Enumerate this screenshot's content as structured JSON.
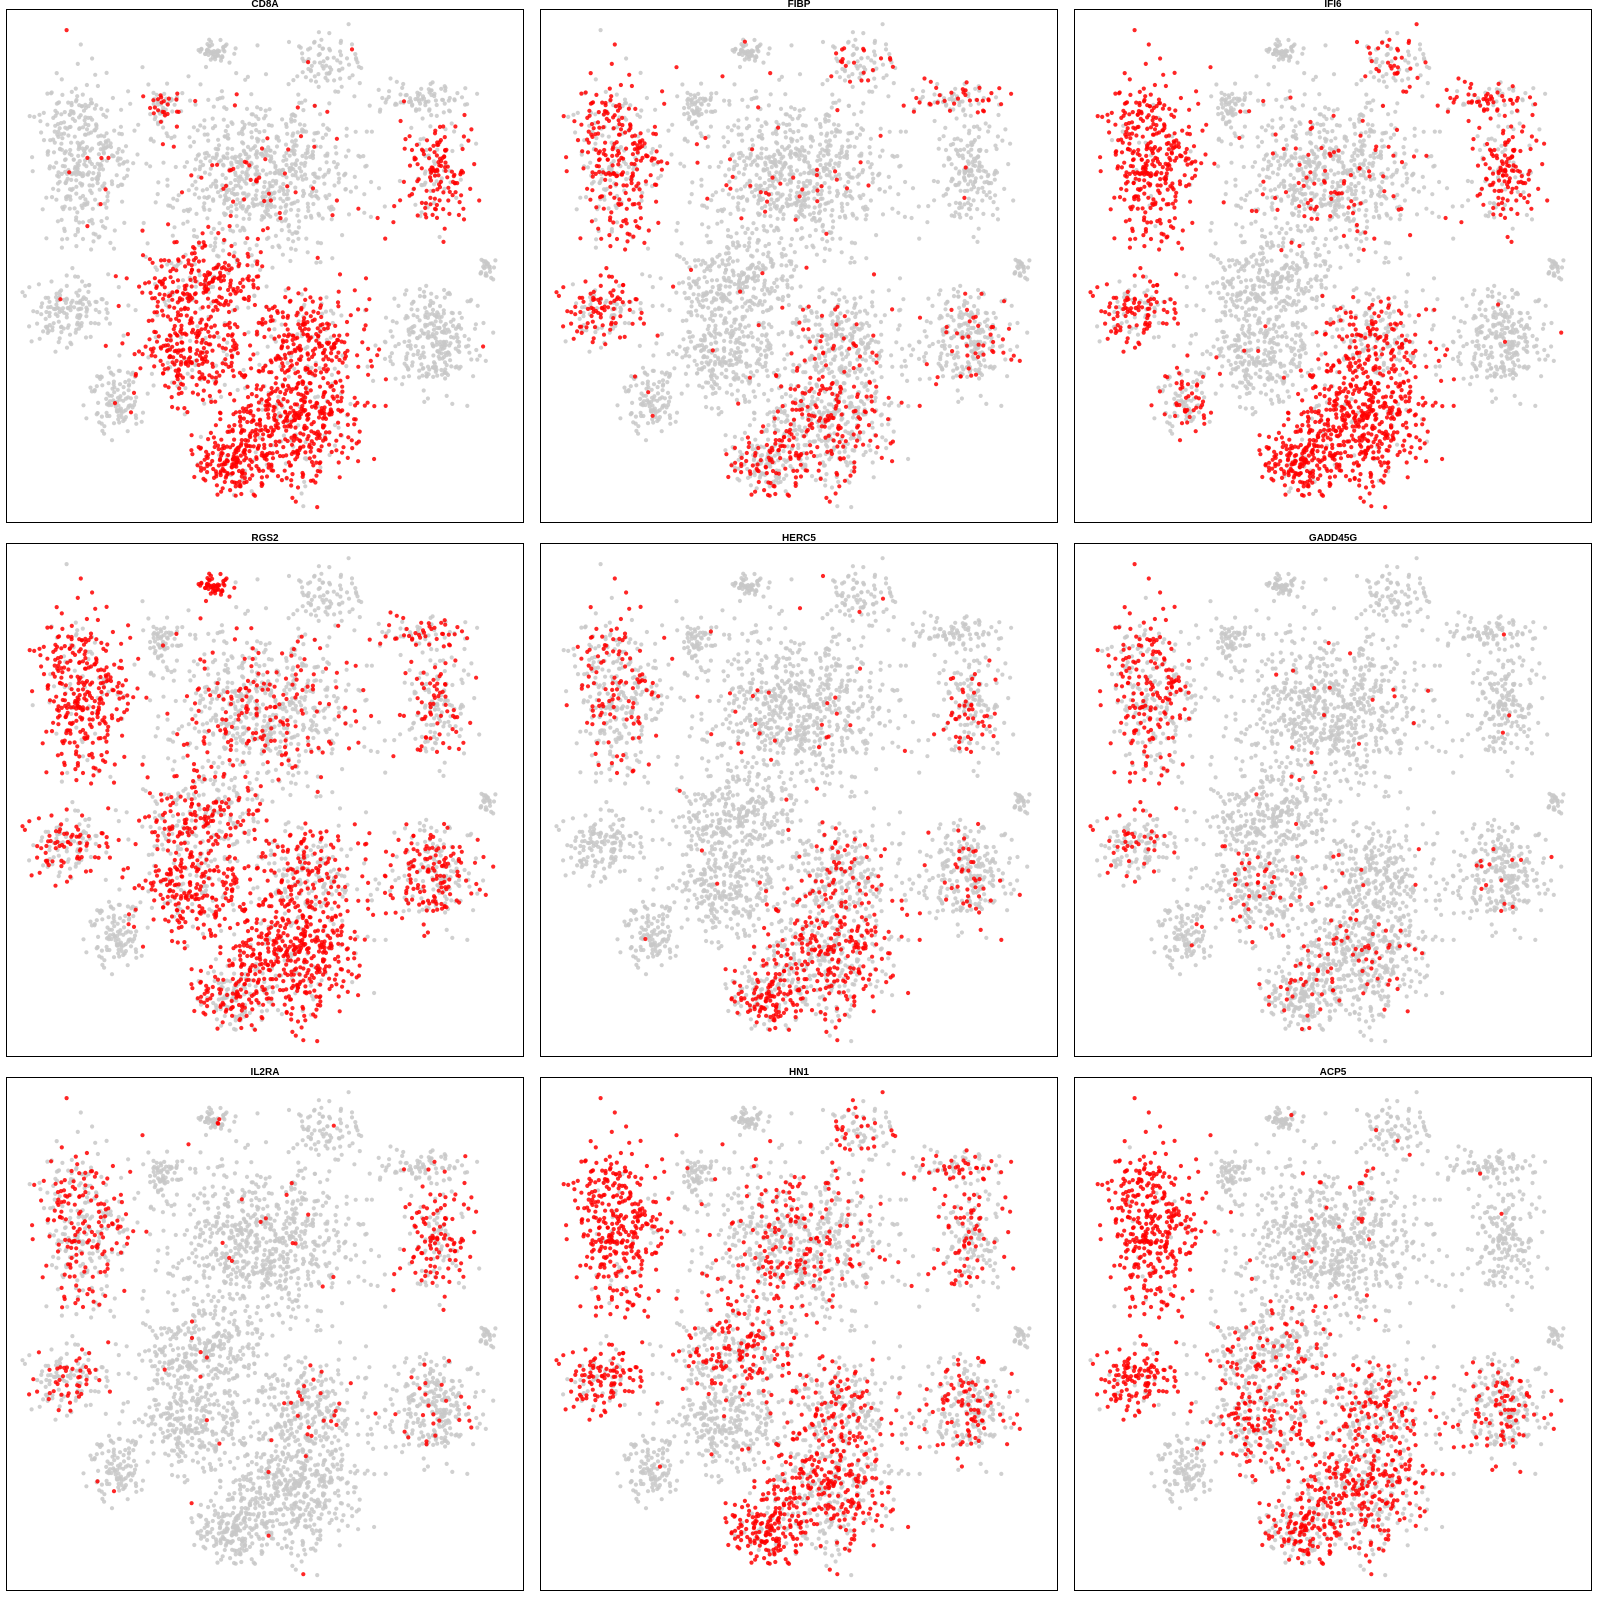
{
  "chart_data": [
    {
      "type": "scatter",
      "title": "CD8A",
      "grid": false,
      "legend": "none",
      "colors": {
        "low": "#c8c8c8",
        "high": "#ff0000"
      },
      "hot_regions": [
        "middle-left clusters",
        "bottom-center large cluster",
        "bottom cluster",
        "upper-right arc"
      ]
    },
    {
      "type": "scatter",
      "title": "FIBP",
      "grid": false,
      "legend": "none",
      "colors": {
        "low": "#c8c8c8",
        "high": "#ff0000"
      },
      "hot_regions": [
        "left cluster",
        "bottom-center cluster",
        "scattered"
      ]
    },
    {
      "type": "scatter",
      "title": "IFI6",
      "grid": false,
      "legend": "none",
      "colors": {
        "low": "#c8c8c8",
        "high": "#ff0000"
      },
      "hot_regions": [
        "left cluster",
        "bottom-center large cluster",
        "bottom cluster",
        "right-middle arc"
      ]
    },
    {
      "type": "scatter",
      "title": "RGS2",
      "grid": false,
      "legend": "none",
      "colors": {
        "low": "#c8c8c8",
        "high": "#ff0000"
      },
      "hot_regions": [
        "left cluster",
        "top-left small cluster",
        "bottom-center large cluster",
        "middle-left clusters"
      ]
    },
    {
      "type": "scatter",
      "title": "HERC5",
      "grid": false,
      "legend": "none",
      "colors": {
        "low": "#c8c8c8",
        "high": "#ff0000"
      },
      "hot_regions": [
        "bottom-center cluster",
        "scattered"
      ]
    },
    {
      "type": "scatter",
      "title": "GADD45G",
      "grid": false,
      "legend": "none",
      "colors": {
        "low": "#c8c8c8",
        "high": "#ff0000"
      },
      "hot_regions": [
        "left cluster",
        "scattered"
      ]
    },
    {
      "type": "scatter",
      "title": "IL2RA",
      "grid": false,
      "legend": "none",
      "colors": {
        "low": "#c8c8c8",
        "high": "#ff0000"
      },
      "hot_regions": [
        "left cluster",
        "right-middle arc"
      ]
    },
    {
      "type": "scatter",
      "title": "HN1",
      "grid": false,
      "legend": "none",
      "colors": {
        "low": "#c8c8c8",
        "high": "#ff0000"
      },
      "hot_regions": [
        "left cluster",
        "bottom-center cluster",
        "bottom cluster",
        "scattered"
      ]
    },
    {
      "type": "scatter",
      "title": "ACP5",
      "grid": false,
      "legend": "none",
      "colors": {
        "low": "#c8c8c8",
        "high": "#ff0000"
      },
      "hot_regions": [
        "left cluster",
        "bottom-center cluster"
      ]
    }
  ]
}
